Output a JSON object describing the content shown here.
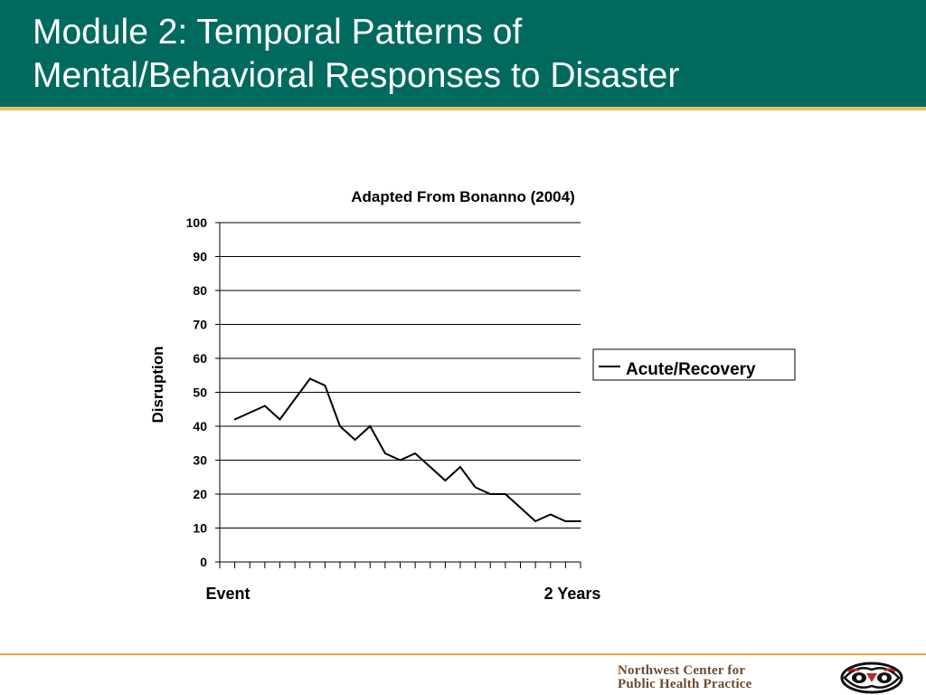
{
  "slide": {
    "title_line1": "Module 2: Temporal Patterns of",
    "title_line2": "Mental/Behavioral Responses to Disaster",
    "colors": {
      "header": "#006a5f",
      "header_rule": "#e8c15c",
      "footer_rule": "#e8a640",
      "line": "#000000"
    }
  },
  "footer": {
    "org_line1": "Northwest Center for",
    "org_line2": "Public Health Practice",
    "logo_icon": "northwest-native-art-logo-icon"
  },
  "chart_data": {
    "type": "line",
    "title": "Adapted From Bonanno (2004)",
    "ylabel": "Disruption",
    "xlabel": "",
    "ylim": [
      0,
      100
    ],
    "yticks": [
      0,
      10,
      20,
      30,
      40,
      50,
      60,
      70,
      80,
      90,
      100
    ],
    "x_start_label": "Event",
    "x_end_label": "2 Years",
    "grid": true,
    "legend_position": "right",
    "series": [
      {
        "name": "Acute/Recovery",
        "color": "#000000",
        "values": [
          42,
          44,
          46,
          42,
          48,
          54,
          52,
          40,
          36,
          40,
          32,
          30,
          32,
          28,
          24,
          28,
          22,
          20,
          20,
          16,
          12,
          14,
          12,
          12
        ]
      }
    ]
  }
}
